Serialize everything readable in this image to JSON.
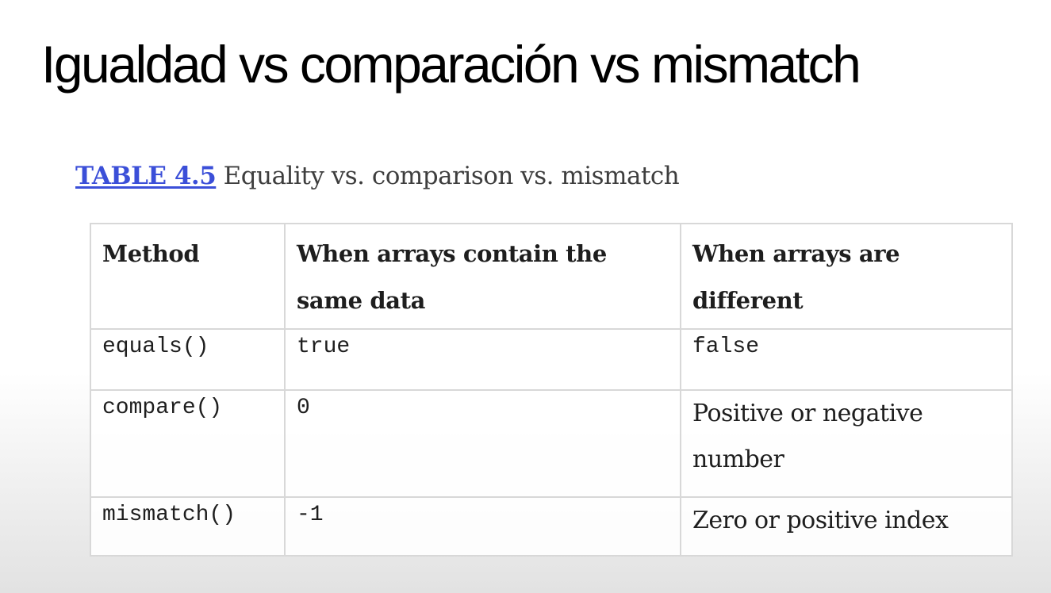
{
  "slide": {
    "title": "Igualdad vs comparación vs mismatch"
  },
  "caption": {
    "table_ref": "TABLE 4.5",
    "text": "Equality vs. comparison vs. mismatch"
  },
  "table": {
    "headers": [
      "Method",
      "When arrays contain the same data",
      "When arrays are different"
    ],
    "rows": [
      {
        "method": "equals()",
        "same": "true",
        "different": "false"
      },
      {
        "method": "compare()",
        "same": "0",
        "different": "Positive or negative number"
      },
      {
        "method": "mismatch()",
        "same": "-1",
        "different": "Zero or positive index"
      }
    ]
  }
}
